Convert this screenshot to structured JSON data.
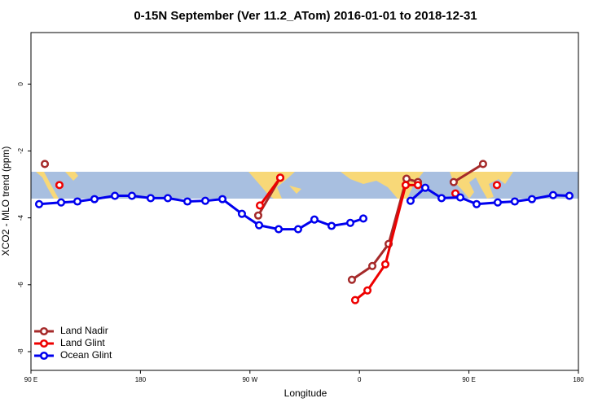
{
  "chart_data": {
    "type": "line",
    "title": "0-15N September (Ver 11.2_ATom)   2016-01-01 to 2018-12-31",
    "xlabel": "Longitude",
    "ylabel": "XCO2 - MLO trend (ppm)",
    "xlim": [
      90,
      540
    ],
    "xticks": [
      {
        "value": 90,
        "label": "90 E"
      },
      {
        "value": 180,
        "label": "180"
      },
      {
        "value": 270,
        "label": "90 W"
      },
      {
        "value": 360,
        "label": "0"
      },
      {
        "value": 450,
        "label": "90 E"
      },
      {
        "value": 540,
        "label": "180"
      }
    ],
    "ylim": [
      -8.56,
      1.54
    ],
    "yticks": [
      0,
      -2,
      -4,
      -6,
      -8
    ],
    "legend": "bottom-left",
    "series": [
      {
        "name": "Land Nadir",
        "color": "#a52a2a",
        "x": [
          101.4,
          null,
          276.8,
          294.9,
          null,
          353.8,
          370.6,
          384.0,
          398.7,
          408.1,
          null,
          437.5,
          461.6
        ],
        "values": [
          -2.39,
          null,
          -3.93,
          -2.8,
          null,
          -5.85,
          -5.44,
          -4.78,
          -2.83,
          -2.93,
          null,
          -2.93,
          -2.39
        ]
      },
      {
        "name": "Land Glint",
        "color": "#ee0000",
        "x": [
          113.4,
          null,
          278.2,
          294.9,
          null,
          356.5,
          366.6,
          381.3,
          398.0,
          408.1,
          null,
          438.9,
          null,
          473.0
        ],
        "values": [
          -3.02,
          null,
          -3.63,
          -2.8,
          null,
          -6.46,
          -6.17,
          -5.39,
          -3.02,
          -3.02,
          null,
          -3.27,
          null,
          -3.02
        ]
      },
      {
        "name": "Ocean Glint",
        "color": "#0000ee",
        "x": [
          96.7,
          114.8,
          128.2,
          142.2,
          159.0,
          173.0,
          188.4,
          202.5,
          218.6,
          233.3,
          247.4,
          263.4,
          277.5,
          293.6,
          309.6,
          323.0,
          337.1,
          352.5,
          363.2,
          null,
          402.0,
          414.1,
          427.5,
          442.9,
          456.3,
          473.7,
          487.7,
          501.8,
          519.2,
          532.6
        ],
        "values": [
          -3.59,
          -3.54,
          -3.51,
          -3.44,
          -3.34,
          -3.34,
          -3.41,
          -3.41,
          -3.51,
          -3.49,
          -3.44,
          -3.88,
          -4.22,
          -4.34,
          -4.34,
          -4.05,
          -4.24,
          -4.15,
          -4.02,
          null,
          -3.49,
          -3.1,
          -3.41,
          -3.39,
          -3.59,
          -3.54,
          -3.51,
          -3.44,
          -3.32,
          -3.34
        ]
      }
    ]
  }
}
